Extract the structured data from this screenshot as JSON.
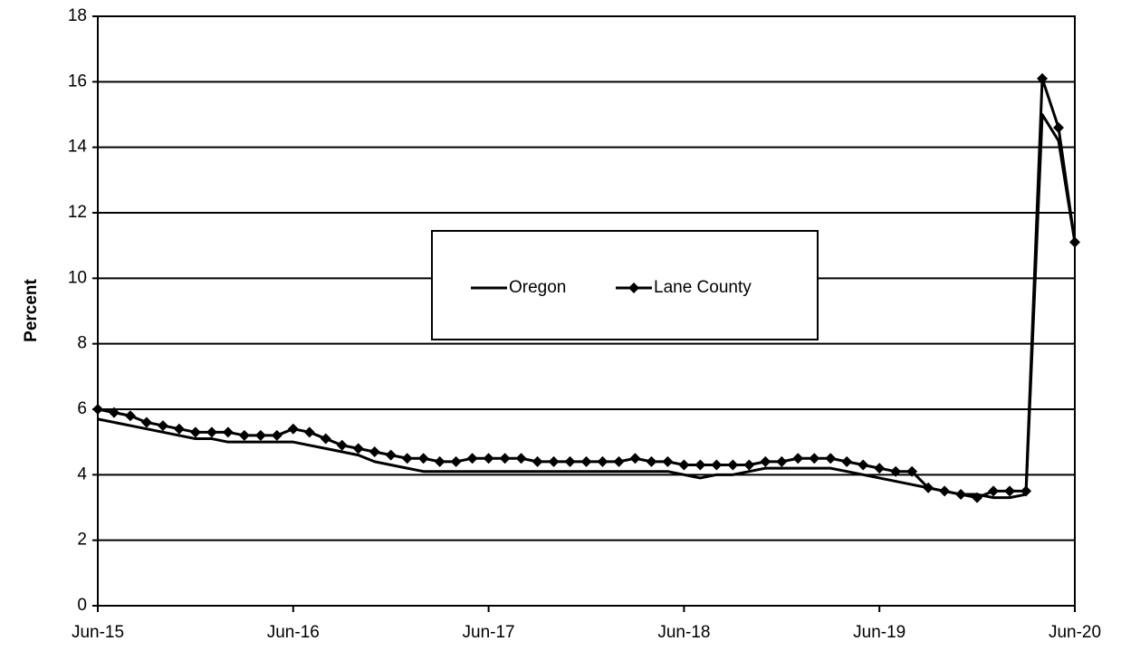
{
  "chart_data": {
    "type": "line",
    "y_label": "Percent",
    "categories": [
      "Jun-15",
      null,
      null,
      null,
      null,
      null,
      null,
      null,
      null,
      null,
      null,
      null,
      "Jun-16",
      null,
      null,
      null,
      null,
      null,
      null,
      null,
      null,
      null,
      null,
      null,
      "Jun-17",
      null,
      null,
      null,
      null,
      null,
      null,
      null,
      null,
      null,
      null,
      null,
      "Jun-18",
      null,
      null,
      null,
      null,
      null,
      null,
      null,
      null,
      null,
      null,
      null,
      "Jun-19",
      null,
      null,
      null,
      null,
      null,
      null,
      null,
      null,
      null,
      null,
      null,
      "Jun-20"
    ],
    "series": [
      {
        "name": "Oregon",
        "color": "#000000",
        "marker": false,
        "values": [
          5.7,
          5.6,
          5.5,
          5.4,
          5.3,
          5.2,
          5.1,
          5.1,
          5.0,
          5.0,
          5.0,
          5.0,
          5.0,
          4.9,
          4.8,
          4.7,
          4.6,
          4.4,
          4.3,
          4.2,
          4.1,
          4.1,
          4.1,
          4.1,
          4.1,
          4.1,
          4.1,
          4.1,
          4.1,
          4.1,
          4.1,
          4.1,
          4.1,
          4.1,
          4.1,
          4.1,
          4.0,
          3.9,
          4.0,
          4.0,
          4.1,
          4.2,
          4.2,
          4.2,
          4.2,
          4.2,
          4.1,
          4.0,
          3.9,
          3.8,
          3.7,
          3.6,
          3.5,
          3.4,
          3.4,
          3.3,
          3.3,
          3.4,
          15.0,
          14.2,
          11.1
        ]
      },
      {
        "name": "Lane County",
        "color": "#000000",
        "marker": true,
        "values": [
          6.0,
          5.9,
          5.8,
          5.6,
          5.5,
          5.4,
          5.3,
          5.3,
          5.3,
          5.2,
          5.2,
          5.2,
          5.4,
          5.3,
          5.1,
          4.9,
          4.8,
          4.7,
          4.6,
          4.5,
          4.5,
          4.4,
          4.4,
          4.5,
          4.5,
          4.5,
          4.5,
          4.4,
          4.4,
          4.4,
          4.4,
          4.4,
          4.4,
          4.5,
          4.4,
          4.4,
          4.3,
          4.3,
          4.3,
          4.3,
          4.3,
          4.4,
          4.4,
          4.5,
          4.5,
          4.5,
          4.4,
          4.3,
          4.2,
          4.1,
          4.1,
          3.6,
          3.5,
          3.4,
          3.3,
          3.5,
          3.5,
          3.5,
          16.1,
          14.6,
          11.1
        ]
      }
    ],
    "ylim": [
      0,
      18
    ],
    "yticks": [
      0,
      2,
      4,
      6,
      8,
      10,
      12,
      14,
      16,
      18
    ],
    "grid": true
  }
}
